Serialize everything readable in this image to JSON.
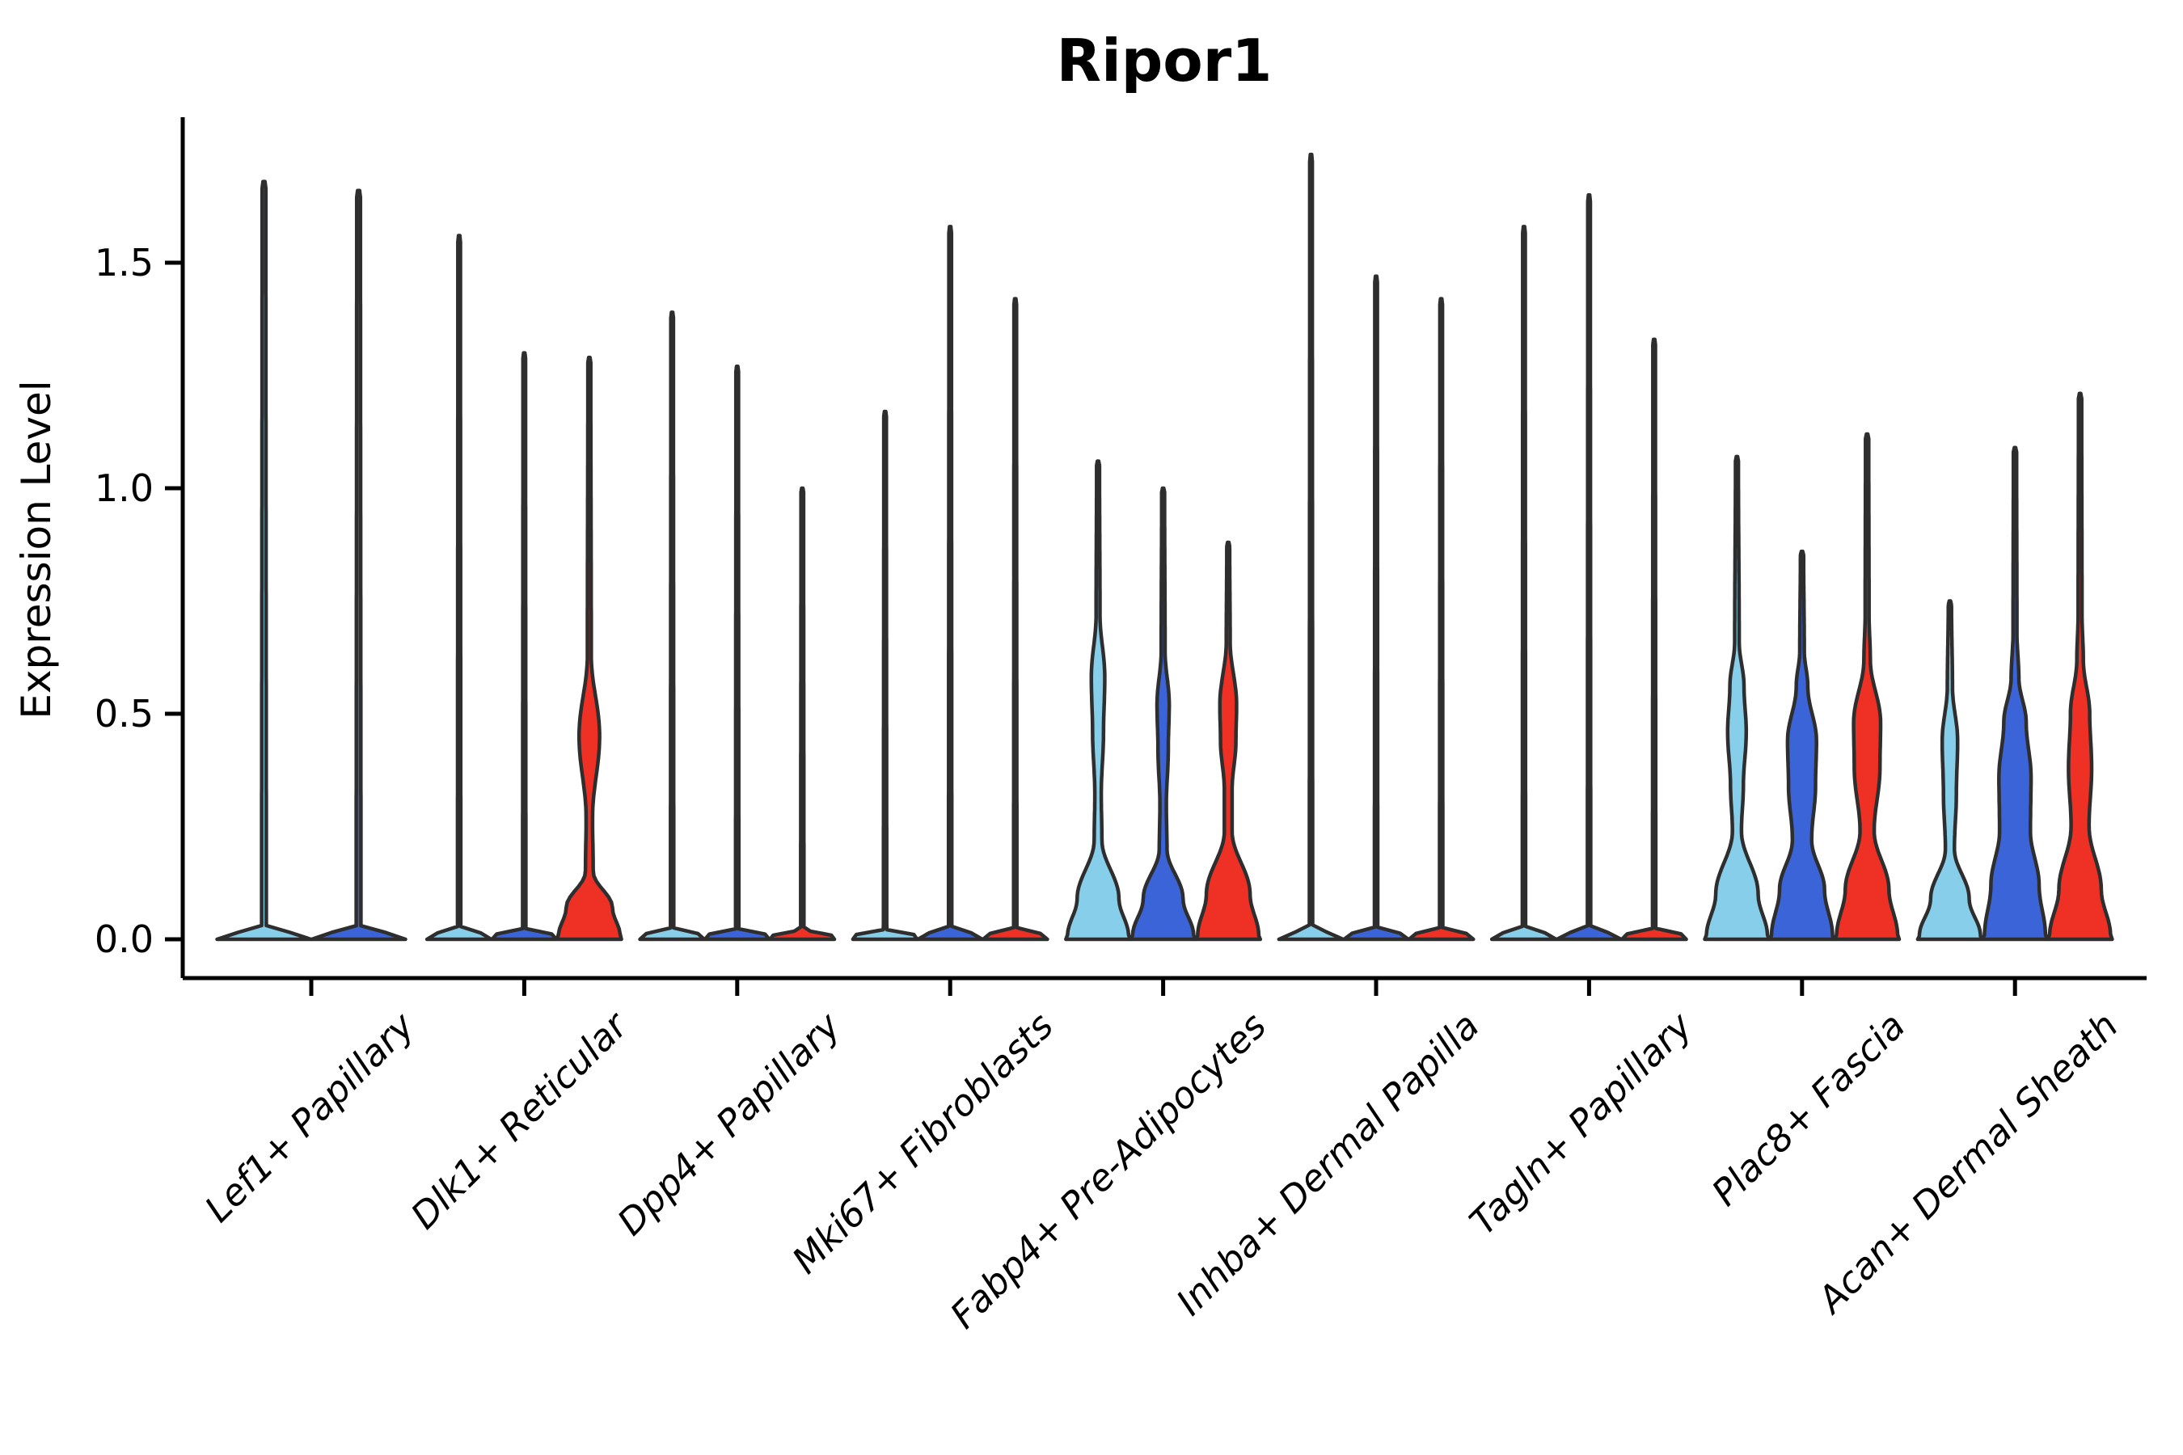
{
  "title": "Ripor1",
  "ylabel": "Expression Level",
  "colors": {
    "outline": "#2e2e2e",
    "axis": "#000000",
    "background": "#ffffff",
    "series": [
      "#87CEEB",
      "#3B64D8",
      "#EF3125"
    ]
  },
  "chart_data": {
    "type": "violin",
    "title": "Ripor1",
    "xlabel": "",
    "ylabel": "Expression Level",
    "ylim": [
      0,
      1.82
    ],
    "yticks": [
      "0.0",
      "0.5",
      "1.0",
      "1.5"
    ],
    "ytick_values": [
      0.0,
      0.5,
      1.0,
      1.5
    ],
    "grid": false,
    "legend": "none",
    "series_colors": [
      "#87CEEB",
      "#3B64D8",
      "#EF3125"
    ],
    "categories": [
      "Lef1+ Papillary",
      "Dlk1+ Reticular",
      "Dpp4+ Papillary",
      "Mki67+ Fibroblasts",
      "Fabp4+ Pre-Adipocytes",
      "Inhba+ Dermal Papilla",
      "Tagln+ Papillary",
      "Plac8+ Fascia",
      "Acan+ Dermal Sheath"
    ],
    "groups": [
      {
        "category": "Lef1+ Papillary",
        "violins": [
          {
            "color_index": 0,
            "max": 1.68,
            "body": null
          },
          {
            "color_index": 1,
            "max": 1.66,
            "body": null
          }
        ]
      },
      {
        "category": "Dlk1+ Reticular",
        "violins": [
          {
            "color_index": 0,
            "max": 1.56,
            "body": null
          },
          {
            "color_index": 1,
            "max": 1.3,
            "body": null
          },
          {
            "color_index": 2,
            "max": 1.29,
            "body": [
              [
                0,
                1.0
              ],
              [
                0.008,
                0.96
              ],
              [
                0.07,
                0.72
              ],
              [
                0.15,
                0.12
              ],
              [
                0.27,
                0.1
              ],
              [
                0.45,
                0.32
              ],
              [
                0.63,
                0.06
              ],
              [
                1.28,
                0.045
              ],
              [
                1.29,
                0.02
              ]
            ]
          }
        ]
      },
      {
        "category": "Dpp4+ Papillary",
        "violins": [
          {
            "color_index": 0,
            "max": 1.39,
            "body": null
          },
          {
            "color_index": 1,
            "max": 1.27,
            "body": null
          },
          {
            "color_index": 2,
            "max": 1.0,
            "body": null
          }
        ]
      },
      {
        "category": "Mki67+ Fibroblasts",
        "violins": [
          {
            "color_index": 0,
            "max": 1.17,
            "body": null
          },
          {
            "color_index": 1,
            "max": 1.58,
            "body": null
          },
          {
            "color_index": 2,
            "max": 1.42,
            "body": null
          }
        ]
      },
      {
        "category": "Fabp4+ Pre-Adipocytes",
        "violins": [
          {
            "color_index": 0,
            "max": 1.06,
            "body": [
              [
                0,
                1.0
              ],
              [
                0.008,
                0.95
              ],
              [
                0.09,
                0.65
              ],
              [
                0.22,
                0.12
              ],
              [
                0.32,
                0.1
              ],
              [
                0.46,
                0.17
              ],
              [
                0.58,
                0.21
              ],
              [
                0.72,
                0.06
              ],
              [
                1.05,
                0.045
              ],
              [
                1.06,
                0.02
              ]
            ]
          },
          {
            "color_index": 1,
            "max": 1.0,
            "body": [
              [
                0,
                1.0
              ],
              [
                0.008,
                0.95
              ],
              [
                0.09,
                0.62
              ],
              [
                0.2,
                0.12
              ],
              [
                0.3,
                0.1
              ],
              [
                0.42,
                0.16
              ],
              [
                0.52,
                0.19
              ],
              [
                0.64,
                0.06
              ],
              [
                0.99,
                0.045
              ],
              [
                1.0,
                0.02
              ]
            ]
          },
          {
            "color_index": 2,
            "max": 0.88,
            "body": [
              [
                0,
                1.0
              ],
              [
                0.008,
                0.95
              ],
              [
                0.1,
                0.68
              ],
              [
                0.24,
                0.12
              ],
              [
                0.33,
                0.12
              ],
              [
                0.44,
                0.24
              ],
              [
                0.52,
                0.26
              ],
              [
                0.66,
                0.06
              ],
              [
                0.87,
                0.045
              ],
              [
                0.88,
                0.02
              ]
            ]
          }
        ]
      },
      {
        "category": "Inhba+ Dermal Papilla",
        "violins": [
          {
            "color_index": 0,
            "max": 1.74,
            "body": null
          },
          {
            "color_index": 1,
            "max": 1.47,
            "body": null
          },
          {
            "color_index": 2,
            "max": 1.42,
            "body": null
          }
        ]
      },
      {
        "category": "Tagln+ Papillary",
        "violins": [
          {
            "color_index": 0,
            "max": 1.58,
            "body": null
          },
          {
            "color_index": 1,
            "max": 1.65,
            "body": null
          },
          {
            "color_index": 2,
            "max": 1.33,
            "body": null
          }
        ]
      },
      {
        "category": "Plac8+ Fascia",
        "violins": [
          {
            "color_index": 0,
            "max": 1.07,
            "body": [
              [
                0,
                1.0
              ],
              [
                0.008,
                0.95
              ],
              [
                0.1,
                0.66
              ],
              [
                0.24,
                0.14
              ],
              [
                0.34,
                0.2
              ],
              [
                0.46,
                0.29
              ],
              [
                0.56,
                0.22
              ],
              [
                0.66,
                0.07
              ],
              [
                1.06,
                0.045
              ],
              [
                1.07,
                0.02
              ]
            ]
          },
          {
            "color_index": 1,
            "max": 0.86,
            "body": [
              [
                0,
                1.0
              ],
              [
                0.008,
                0.95
              ],
              [
                0.11,
                0.7
              ],
              [
                0.22,
                0.3
              ],
              [
                0.34,
                0.42
              ],
              [
                0.44,
                0.45
              ],
              [
                0.56,
                0.18
              ],
              [
                0.64,
                0.07
              ],
              [
                0.85,
                0.05
              ],
              [
                0.86,
                0.02
              ]
            ]
          },
          {
            "color_index": 2,
            "max": 1.12,
            "body": [
              [
                0,
                1.0
              ],
              [
                0.008,
                0.95
              ],
              [
                0.11,
                0.68
              ],
              [
                0.24,
                0.22
              ],
              [
                0.38,
                0.4
              ],
              [
                0.48,
                0.42
              ],
              [
                0.62,
                0.1
              ],
              [
                0.72,
                0.06
              ],
              [
                1.11,
                0.05
              ],
              [
                1.12,
                0.02
              ]
            ]
          }
        ]
      },
      {
        "category": "Acan+ Dermal Sheath",
        "violins": [
          {
            "color_index": 0,
            "max": 0.75,
            "body": [
              [
                0,
                1.0
              ],
              [
                0.008,
                0.95
              ],
              [
                0.09,
                0.6
              ],
              [
                0.2,
                0.14
              ],
              [
                0.32,
                0.2
              ],
              [
                0.44,
                0.24
              ],
              [
                0.56,
                0.08
              ],
              [
                0.74,
                0.05
              ],
              [
                0.75,
                0.02
              ]
            ]
          },
          {
            "color_index": 1,
            "max": 1.09,
            "body": [
              [
                0,
                1.0
              ],
              [
                0.008,
                0.95
              ],
              [
                0.12,
                0.75
              ],
              [
                0.24,
                0.48
              ],
              [
                0.36,
                0.5
              ],
              [
                0.48,
                0.35
              ],
              [
                0.58,
                0.12
              ],
              [
                0.68,
                0.06
              ],
              [
                1.08,
                0.05
              ],
              [
                1.09,
                0.02
              ]
            ]
          },
          {
            "color_index": 2,
            "max": 1.21,
            "body": [
              [
                0,
                1.0
              ],
              [
                0.008,
                0.95
              ],
              [
                0.11,
                0.66
              ],
              [
                0.25,
                0.28
              ],
              [
                0.38,
                0.36
              ],
              [
                0.5,
                0.3
              ],
              [
                0.62,
                0.1
              ],
              [
                0.72,
                0.06
              ],
              [
                1.2,
                0.05
              ],
              [
                1.21,
                0.02
              ]
            ]
          }
        ]
      }
    ]
  }
}
